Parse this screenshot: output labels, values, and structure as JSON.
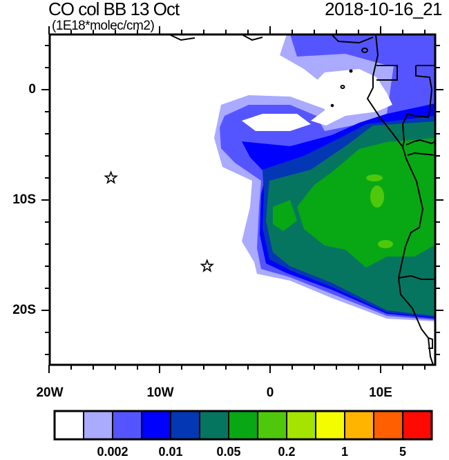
{
  "title": "CO col BB 13 Oct",
  "units": "(1E18*molec/cm2)",
  "datetime": "2018-10-16_21",
  "map": {
    "lon_range": [
      -20,
      15
    ],
    "lat_range": [
      -25,
      5
    ],
    "lat_labels": [
      "0",
      "10S",
      "20S"
    ],
    "lon_labels": [
      "20W",
      "10W",
      "0",
      "10E"
    ],
    "markers": [
      {
        "type": "star",
        "lon": -14.4,
        "lat": -8
      },
      {
        "type": "star",
        "lon": -5.7,
        "lat": -16
      }
    ]
  },
  "colorbar": {
    "colors": [
      "#ffffff",
      "#aaaaff",
      "#5555ff",
      "#0000ff",
      "#0437b4",
      "#067560",
      "#07a814",
      "#4fc80c",
      "#a4e400",
      "#f4fc00",
      "#ffb400",
      "#ff5f00",
      "#ff0a00"
    ],
    "labels": [
      "0.002",
      "0.01",
      "0.05",
      "0.2",
      "1",
      "5"
    ]
  }
}
